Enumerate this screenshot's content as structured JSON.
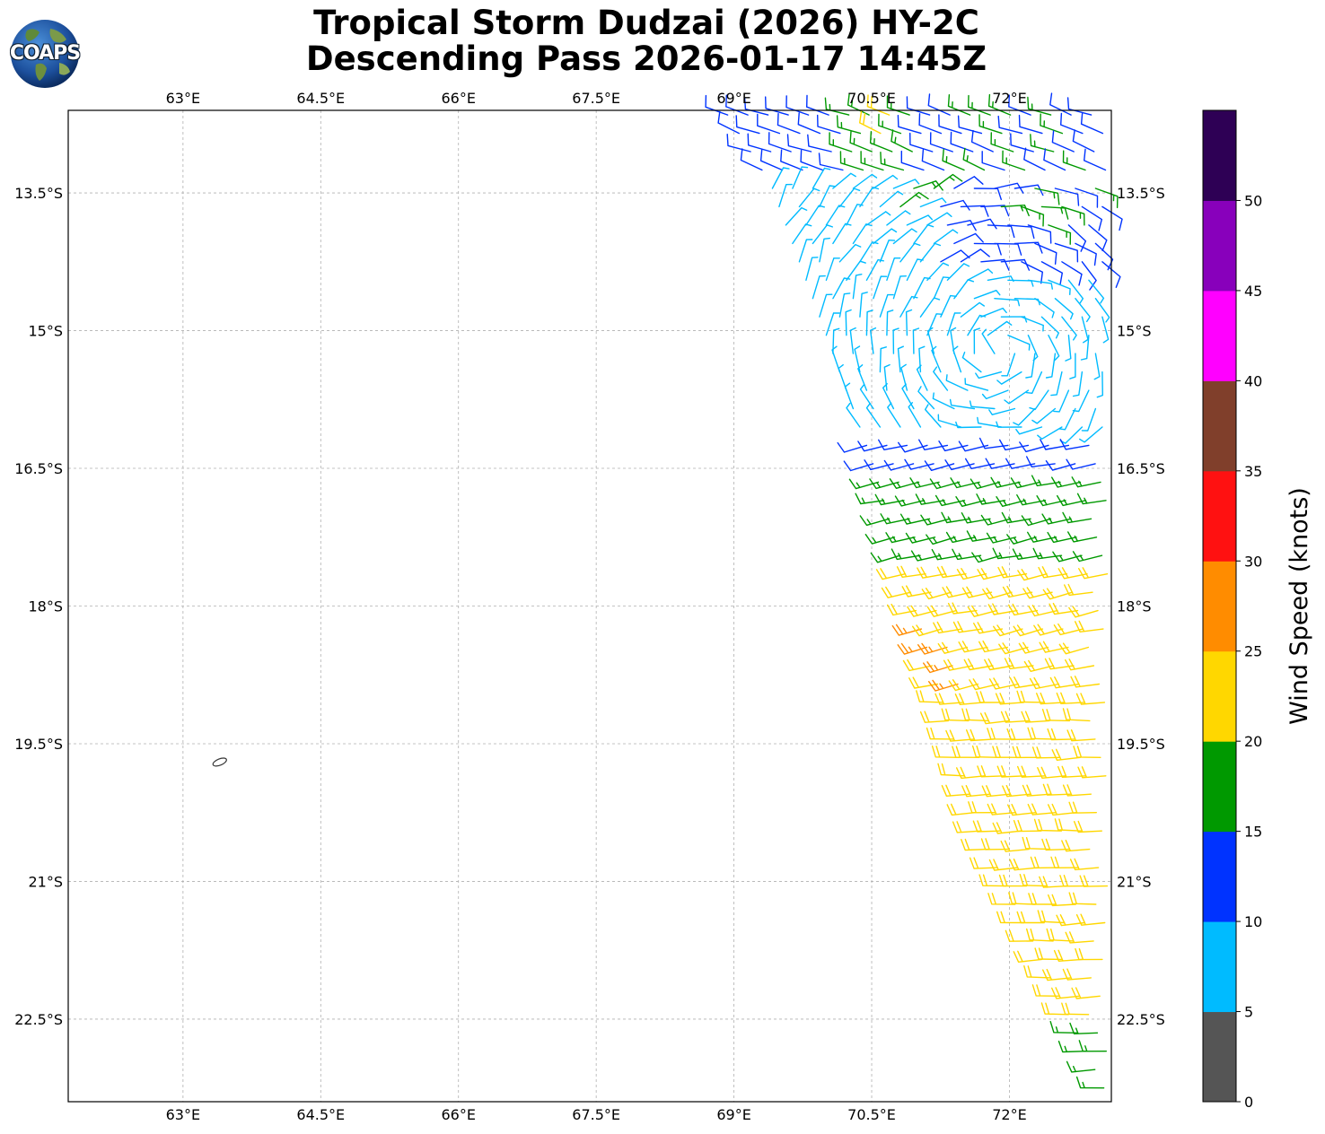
{
  "title": {
    "line1": "Tropical Storm Dudzai (2026) HY-2C",
    "line2": "Descending Pass 2026-01-17 14:45Z"
  },
  "logo": {
    "text": "COAPS"
  },
  "map": {
    "lon_range": [
      61.75,
      73.11
    ],
    "lat_range": [
      -23.4,
      -12.6
    ],
    "lon_ticks": [
      "63°E",
      "64.5°E",
      "66°E",
      "67.5°E",
      "69°E",
      "70.5°E",
      "72°E"
    ],
    "lon_tick_values": [
      63,
      64.5,
      66,
      67.5,
      69,
      70.5,
      72
    ],
    "lat_ticks": [
      "13.5°S",
      "15°S",
      "16.5°S",
      "18°S",
      "19.5°S",
      "21°S",
      "22.5°S"
    ],
    "lat_tick_values": [
      -13.5,
      -15,
      -16.5,
      -18,
      -19.5,
      -21,
      -22.5
    ],
    "grid": true,
    "island": {
      "lon": 63.4,
      "lat": -19.7,
      "name": ""
    }
  },
  "colorbar": {
    "label": "Wind Speed (knots)",
    "ticks": [
      "0",
      "5",
      "10",
      "15",
      "20",
      "25",
      "30",
      "35",
      "40",
      "45",
      "50"
    ],
    "bins": [
      {
        "min": 0,
        "max": 5,
        "color": "#555555"
      },
      {
        "min": 5,
        "max": 10,
        "color": "#00bbff"
      },
      {
        "min": 10,
        "max": 15,
        "color": "#0033ff"
      },
      {
        "min": 15,
        "max": 20,
        "color": "#009900"
      },
      {
        "min": 20,
        "max": 25,
        "color": "#ffd700"
      },
      {
        "min": 25,
        "max": 30,
        "color": "#ff8c00"
      },
      {
        "min": 30,
        "max": 35,
        "color": "#ff1111"
      },
      {
        "min": 35,
        "max": 40,
        "color": "#803f2b"
      },
      {
        "min": 40,
        "max": 45,
        "color": "#ff00ff"
      },
      {
        "min": 45,
        "max": 50,
        "color": "#8800bb"
      },
      {
        "min": 50,
        "max": 55,
        "color": "#2e0055"
      }
    ]
  },
  "chart_data": {
    "type": "wind_barbs",
    "swath": {
      "corners_lonlat": [
        [
          68.9,
          -12.6
        ],
        [
          73.1,
          -12.6
        ],
        [
          73.1,
          -23.4
        ],
        [
          71.7,
          -20.5
        ],
        [
          70.5,
          -16.4
        ],
        [
          69.4,
          -13.4
        ]
      ]
    },
    "circulation_center": {
      "lon": 71.9,
      "lat": -15.2
    },
    "speed_bands_knots": [
      {
        "lat_from": -12.6,
        "lat_to": -13.4,
        "speed": 13,
        "north_band": true
      },
      {
        "lat_from": -13.4,
        "lat_to": -16.0,
        "speed": 7
      },
      {
        "lat_from": -16.0,
        "lat_to": -16.6,
        "speed": 13
      },
      {
        "lat_from": -16.6,
        "lat_to": -17.6,
        "speed": 18
      },
      {
        "lat_from": -17.6,
        "lat_to": -22.6,
        "speed": 22
      },
      {
        "lat_from": -22.6,
        "lat_to": -23.4,
        "speed": 17
      }
    ],
    "highlights": [
      {
        "lon": 71.1,
        "lat": -18.3,
        "speed": 26
      },
      {
        "lon": 71.2,
        "lat": -18.5,
        "speed": 26
      },
      {
        "lon": 71.3,
        "lat": -18.7,
        "speed": 27
      },
      {
        "lon": 71.4,
        "lat": -18.9,
        "speed": 26
      },
      {
        "lon": 70.5,
        "lat": -12.8,
        "speed": 22
      },
      {
        "lon": 70.6,
        "lat": -12.7,
        "speed": 21
      }
    ]
  }
}
